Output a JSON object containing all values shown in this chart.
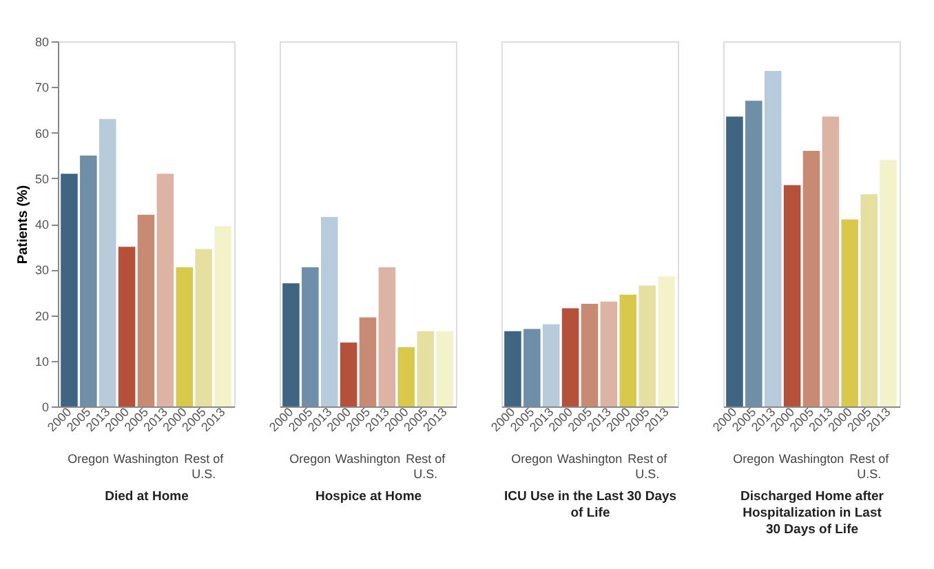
{
  "chart_data": [
    {
      "type": "bar",
      "ylabel": "Patients (%)",
      "xlabel": "Died at Home",
      "categories": [
        "2000",
        "2005",
        "2013",
        "2000",
        "2005",
        "2013",
        "2000",
        "2005",
        "2013"
      ],
      "values": [
        51,
        55,
        63,
        35,
        42,
        51,
        30.5,
        34.5,
        39.5
      ],
      "colors": [
        "#3f6583",
        "#6f8fa8",
        "#b7cbdb",
        "#b5503a",
        "#c98a74",
        "#ddb3a3",
        "#d9c84a",
        "#e6e0a0",
        "#f4f2c8"
      ],
      "ylim": [
        0,
        80
      ],
      "yticks": [
        0,
        10,
        20,
        30,
        40,
        50,
        60,
        70,
        80
      ],
      "grid": false,
      "annotations": [
        "Oregon",
        "Washington",
        "Rest of\nU.S."
      ]
    },
    {
      "type": "bar",
      "xlabel": "Hospice at Home",
      "categories": [
        "2000",
        "2005",
        "2013",
        "2000",
        "2005",
        "2013",
        "2000",
        "2005",
        "2013"
      ],
      "values": [
        27,
        30.5,
        41.5,
        14,
        19.5,
        30.5,
        13,
        16.5,
        16.5
      ],
      "colors": [
        "#3f6583",
        "#6f8fa8",
        "#b7cbdb",
        "#b5503a",
        "#c98a74",
        "#ddb3a3",
        "#d9c84a",
        "#e6e0a0",
        "#f4f2c8"
      ],
      "ylim": [
        0,
        80
      ],
      "tick_labels": "x",
      "grid": false,
      "annotations": [
        "Oregon",
        "Washington",
        "Rest of\nU.S."
      ]
    },
    {
      "type": "bar",
      "xlabel": "ICU Use in the Last 30 Days\nof Life",
      "categories": [
        "2000",
        "2005",
        "2013",
        "2000",
        "2005",
        "2013",
        "2000",
        "2005",
        "2013"
      ],
      "values": [
        16.5,
        17,
        18,
        21.5,
        22.5,
        23,
        24.5,
        26.5,
        28.5
      ],
      "colors": [
        "#3f6583",
        "#6f8fa8",
        "#b7cbdb",
        "#b5503a",
        "#c98a74",
        "#ddb3a3",
        "#d9c84a",
        "#e6e0a0",
        "#f4f2c8"
      ],
      "ylim": [
        0,
        80
      ],
      "tick_labels": "x",
      "grid": false,
      "annotations": [
        "Oregon",
        "Washington",
        "Rest of\nU.S."
      ]
    },
    {
      "type": "bar",
      "xlabel": "Discharged Home after\nHospitalization in Last\n30 Days of Life",
      "categories": [
        "2000",
        "2005",
        "2013",
        "2000",
        "2005",
        "2013",
        "2000",
        "2005",
        "2013"
      ],
      "values": [
        63.5,
        67,
        73.5,
        48.5,
        56,
        63.5,
        41,
        46.5,
        54
      ],
      "colors": [
        "#3f6583",
        "#6f8fa8",
        "#b7cbdb",
        "#b5503a",
        "#c98a74",
        "#ddb3a3",
        "#d9c84a",
        "#e6e0a0",
        "#f4f2c8"
      ],
      "ylim": [
        0,
        80
      ],
      "tick_labels": "x",
      "grid": false,
      "annotations": [
        "Oregon",
        "Washington",
        "Rest of\nU.S."
      ]
    }
  ]
}
